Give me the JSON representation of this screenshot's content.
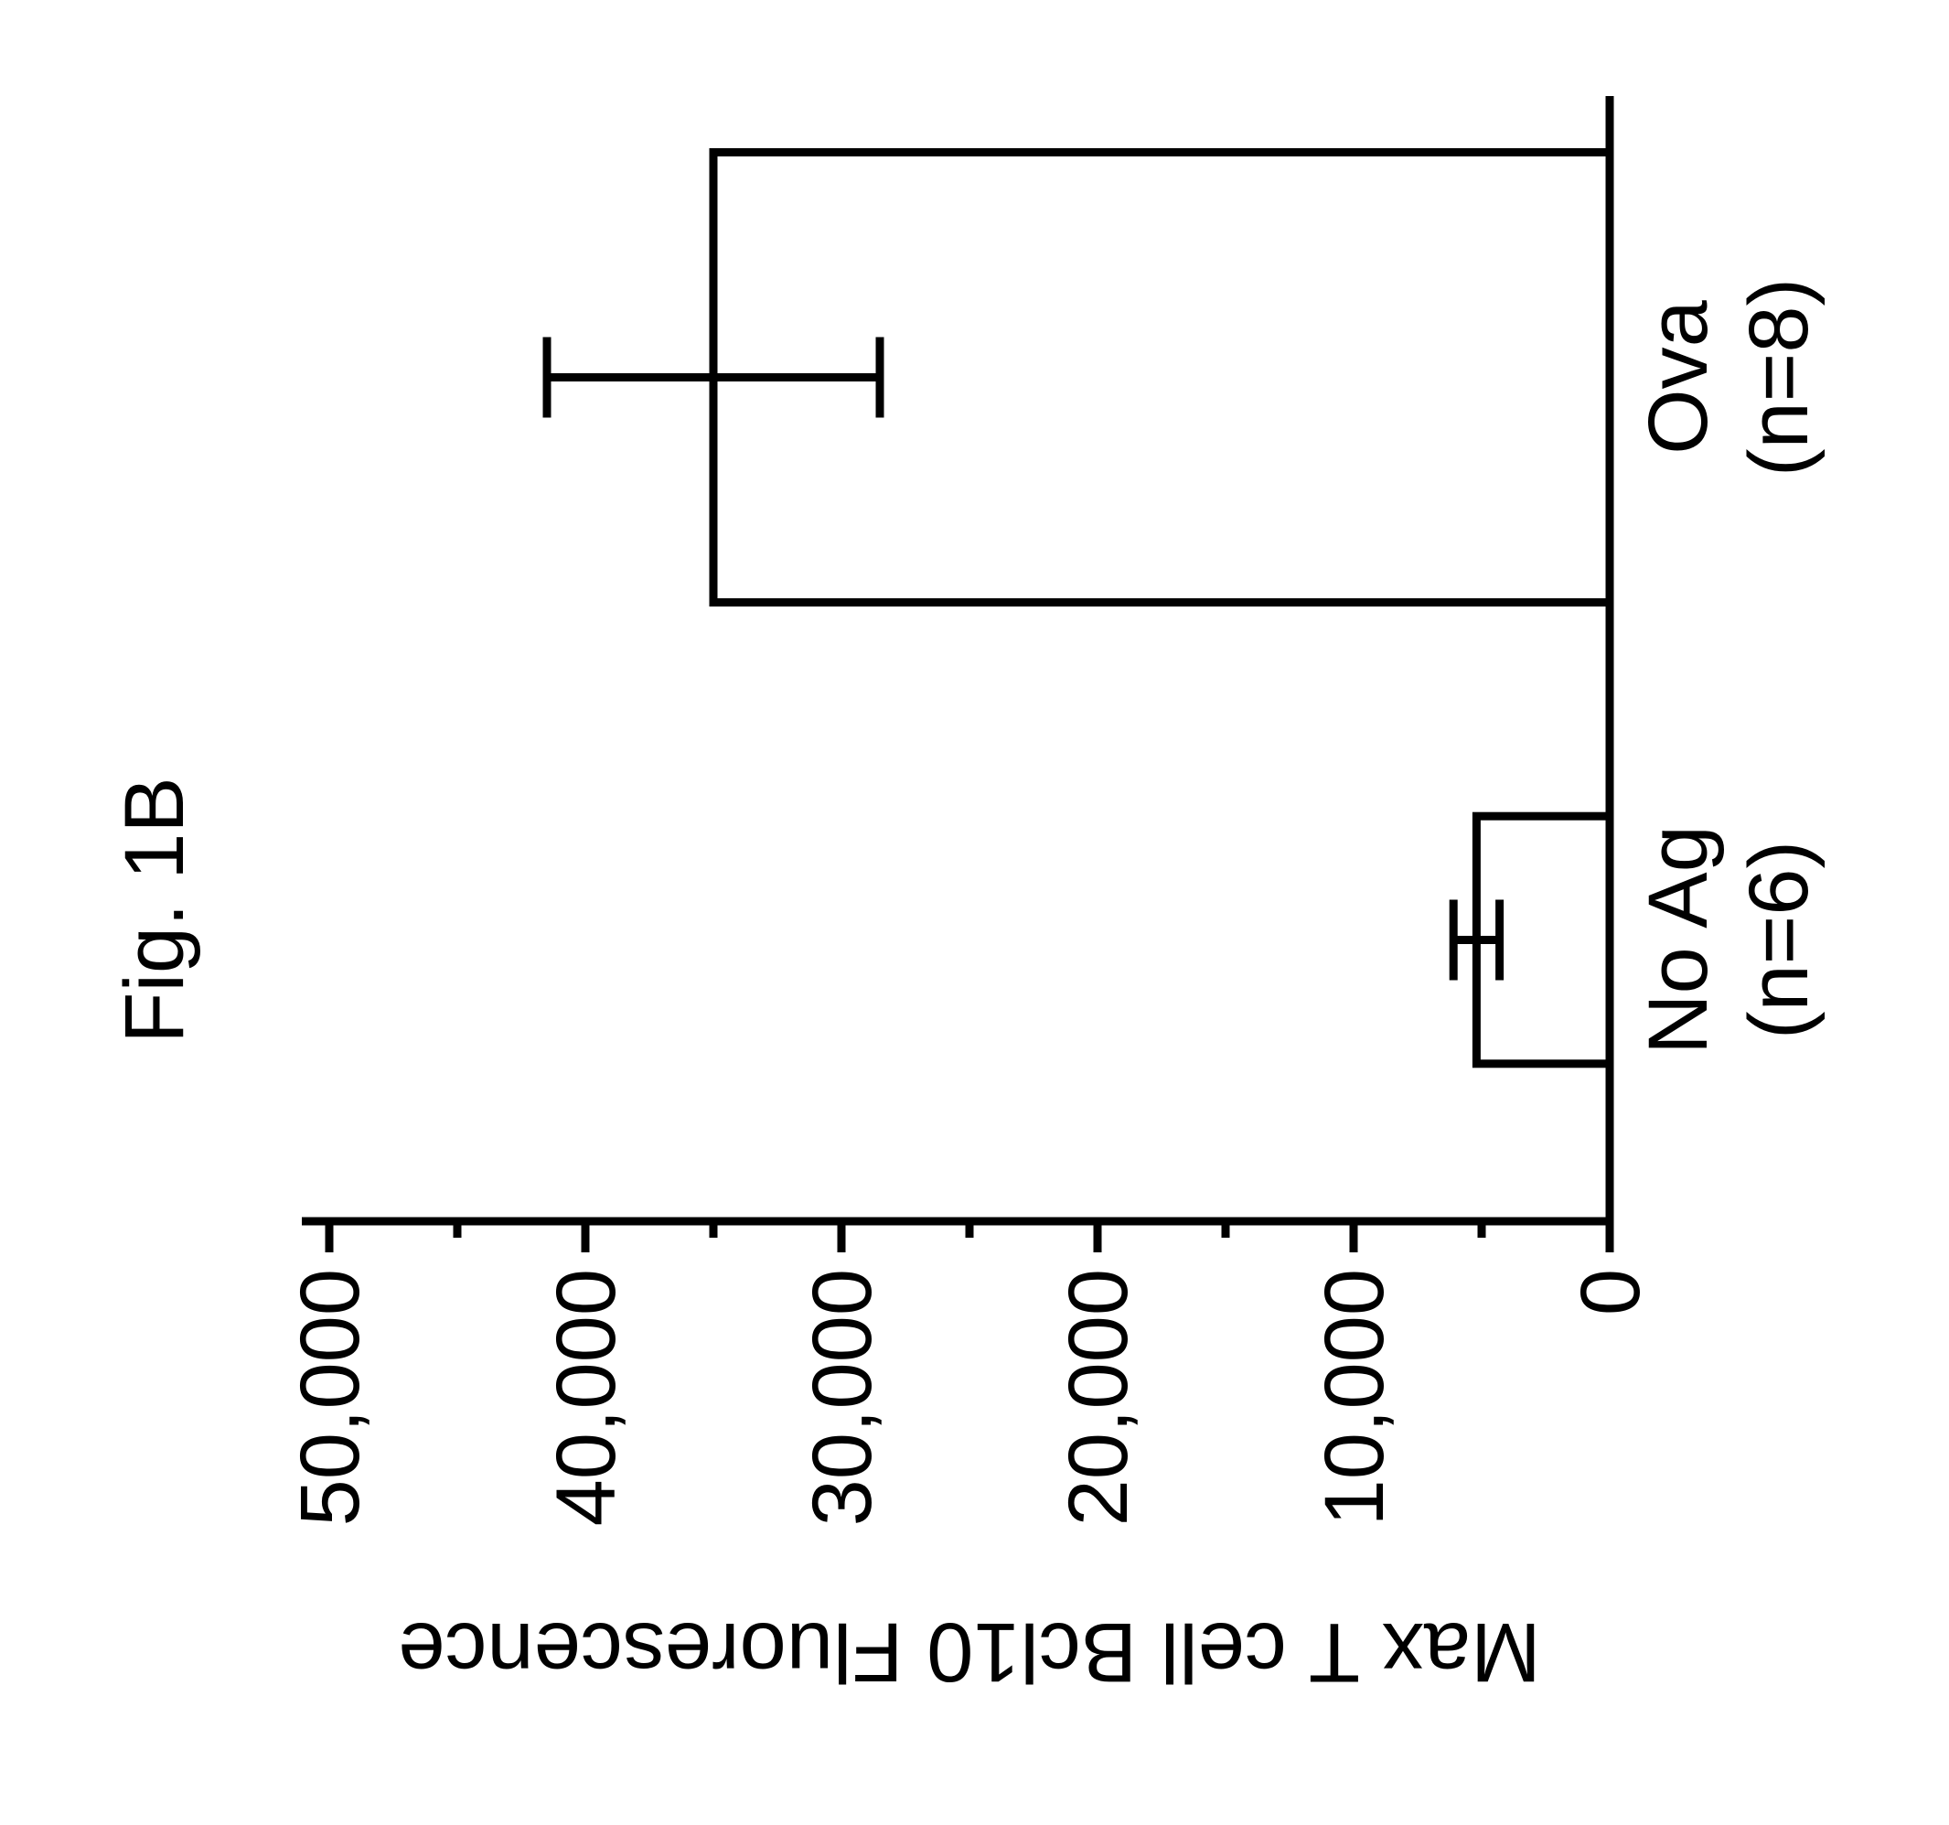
{
  "figure": {
    "title": "Fig. 1B",
    "title_fontsize": 92,
    "title_fontweight": "400",
    "background_color": "#ffffff",
    "text_color": "#000000",
    "chart": {
      "type": "bar",
      "ylabel": "Max T cell Bcl10 Fluorescence",
      "ylabel_fontsize": 92,
      "tick_fontsize": 92,
      "xlabel_fontsize": 92,
      "axis_line_color": "#000000",
      "axis_line_width": 9,
      "tick_length_major": 34,
      "tick_length_minor": 18,
      "tick_width": 9,
      "ylim": [
        0,
        50000
      ],
      "ytick_step": 10000,
      "yminor_step": 5000,
      "ytick_labels": [
        "0",
        "10,000",
        "20,000",
        "30,000",
        "40,000",
        "50,000"
      ],
      "bar_fill": "#ffffff",
      "bar_border_color": "#000000",
      "bar_border_width": 9,
      "errorbar_color": "#000000",
      "errorbar_line_width": 9,
      "errorbar_cap_width": 44,
      "categories": [
        {
          "label_line1": "No Ag",
          "label_line2": "(n=6)",
          "value": 5200,
          "error": 900,
          "bar_rel_width": 0.55
        },
        {
          "label_line1": "Ova",
          "label_line2": "(n=8)",
          "value": 35000,
          "error": 6500,
          "bar_rel_width": 1.0
        }
      ]
    }
  }
}
